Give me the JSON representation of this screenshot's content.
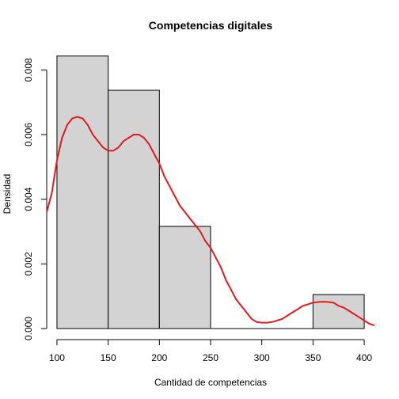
{
  "chart_data": {
    "type": "bar",
    "subtype": "histogram-with-density",
    "title": "Competencias digitales",
    "xlabel": "Cantidad de competencias",
    "ylabel": "Densidad",
    "xlim": [
      90,
      410
    ],
    "ylim": [
      0,
      0.0084
    ],
    "x_ticks": [
      100,
      150,
      200,
      250,
      300,
      350,
      400
    ],
    "x_tick_labels": [
      "100",
      "150",
      "200",
      "250",
      "300",
      "350",
      "400"
    ],
    "y_ticks": [
      0,
      0.002,
      0.004,
      0.006,
      0.008
    ],
    "y_tick_labels": [
      "0.000",
      "0.002",
      "0.004",
      "0.006",
      "0.008"
    ],
    "bins": [
      {
        "start": 100,
        "end": 150,
        "density": 0.00843
      },
      {
        "start": 150,
        "end": 200,
        "density": 0.00737
      },
      {
        "start": 200,
        "end": 250,
        "density": 0.00316
      },
      {
        "start": 250,
        "end": 300,
        "density": 0
      },
      {
        "start": 300,
        "end": 350,
        "density": 0
      },
      {
        "start": 350,
        "end": 400,
        "density": 0.00105
      }
    ],
    "density_curve": {
      "color": "#e31a1c",
      "points": [
        [
          90,
          0.0036
        ],
        [
          95,
          0.0042
        ],
        [
          100,
          0.0052
        ],
        [
          105,
          0.0059
        ],
        [
          110,
          0.0063
        ],
        [
          115,
          0.0065
        ],
        [
          120,
          0.00655
        ],
        [
          125,
          0.0065
        ],
        [
          130,
          0.0063
        ],
        [
          135,
          0.006
        ],
        [
          140,
          0.0058
        ],
        [
          145,
          0.0056
        ],
        [
          150,
          0.0055
        ],
        [
          155,
          0.0055
        ],
        [
          160,
          0.0056
        ],
        [
          165,
          0.0058
        ],
        [
          170,
          0.0059
        ],
        [
          175,
          0.006
        ],
        [
          180,
          0.006
        ],
        [
          185,
          0.0059
        ],
        [
          190,
          0.0057
        ],
        [
          195,
          0.0054
        ],
        [
          200,
          0.0051
        ],
        [
          205,
          0.0047
        ],
        [
          210,
          0.0044
        ],
        [
          215,
          0.0041
        ],
        [
          220,
          0.0038
        ],
        [
          225,
          0.0036
        ],
        [
          230,
          0.0034
        ],
        [
          235,
          0.0032
        ],
        [
          240,
          0.003
        ],
        [
          245,
          0.0027
        ],
        [
          250,
          0.0025
        ],
        [
          255,
          0.0022
        ],
        [
          260,
          0.0019
        ],
        [
          265,
          0.0015
        ],
        [
          270,
          0.0012
        ],
        [
          275,
          0.0009
        ],
        [
          280,
          0.0007
        ],
        [
          285,
          0.0005
        ],
        [
          290,
          0.0003
        ],
        [
          295,
          0.0002
        ],
        [
          300,
          0.00018
        ],
        [
          305,
          0.00018
        ],
        [
          310,
          0.0002
        ],
        [
          315,
          0.00025
        ],
        [
          320,
          0.0003
        ],
        [
          325,
          0.0004
        ],
        [
          330,
          0.0005
        ],
        [
          335,
          0.0006
        ],
        [
          340,
          0.0007
        ],
        [
          345,
          0.00075
        ],
        [
          350,
          0.0008
        ],
        [
          355,
          0.00082
        ],
        [
          360,
          0.00083
        ],
        [
          365,
          0.00082
        ],
        [
          370,
          0.0008
        ],
        [
          375,
          0.0007
        ],
        [
          380,
          0.00065
        ],
        [
          385,
          0.00055
        ],
        [
          390,
          0.00045
        ],
        [
          395,
          0.00035
        ],
        [
          400,
          0.00025
        ],
        [
          405,
          0.00015
        ],
        [
          410,
          0.0001
        ]
      ]
    },
    "bar_fill": "#d3d3d3",
    "bar_stroke": "#000000",
    "grid": false,
    "legend": "none"
  }
}
